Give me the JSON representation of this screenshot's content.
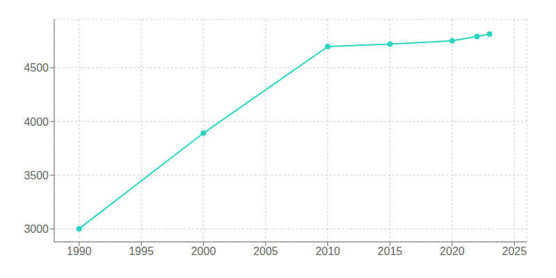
{
  "chart_data": {
    "type": "line",
    "x": [
      1990,
      2000,
      2010,
      2015,
      2020,
      2022,
      2023
    ],
    "values": [
      3002,
      3892,
      4698,
      4721,
      4751,
      4792,
      4814
    ],
    "color": "#2dd4bf",
    "xlim": [
      1988,
      2026
    ],
    "ylim": [
      2880,
      4950
    ],
    "xticks": [
      1990,
      1995,
      2000,
      2005,
      2010,
      2015,
      2020,
      2025
    ],
    "yticks": [
      3000,
      3500,
      4000,
      4500
    ],
    "grid": true,
    "marker": "circle"
  }
}
